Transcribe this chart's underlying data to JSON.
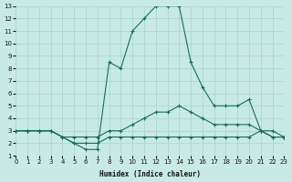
{
  "xlabel": "Humidex (Indice chaleur)",
  "bg_color": "#c8eae4",
  "grid_color": "#a8d4cc",
  "line_color": "#1a6b5a",
  "x_min": 0,
  "x_max": 23,
  "y_min": 1,
  "y_max": 13,
  "line1_x": [
    0,
    1,
    2,
    3,
    4,
    5,
    6,
    7,
    8,
    9,
    10,
    11,
    12,
    13,
    14,
    15,
    16,
    17,
    18,
    19,
    20,
    21,
    22,
    23
  ],
  "line1_y": [
    3,
    3,
    3,
    3,
    2.5,
    2,
    1.5,
    1.5,
    8.5,
    8,
    11,
    12,
    13,
    13,
    13,
    8.5,
    6.5,
    5,
    5,
    5,
    5.5,
    3,
    3,
    2.5
  ],
  "line2_x": [
    0,
    1,
    2,
    3,
    4,
    5,
    6,
    7,
    8,
    9,
    10,
    11,
    12,
    13,
    14,
    15,
    16,
    17,
    18,
    19,
    20,
    21,
    22,
    23
  ],
  "line2_y": [
    3,
    3,
    3,
    3,
    2.5,
    2.5,
    2.5,
    2.5,
    3,
    3,
    3.5,
    4,
    4.5,
    4.5,
    5,
    4.5,
    4,
    3.5,
    3.5,
    3.5,
    3.5,
    3,
    2.5,
    2.5
  ],
  "line3_x": [
    0,
    1,
    2,
    3,
    4,
    5,
    6,
    7,
    8,
    9,
    10,
    11,
    12,
    13,
    14,
    15,
    16,
    17,
    18,
    19,
    20,
    21,
    22,
    23
  ],
  "line3_y": [
    3,
    3,
    3,
    3,
    2.5,
    2,
    2,
    2,
    2.5,
    2.5,
    2.5,
    2.5,
    2.5,
    2.5,
    2.5,
    2.5,
    2.5,
    2.5,
    2.5,
    2.5,
    2.5,
    3,
    2.5,
    2.5
  ]
}
